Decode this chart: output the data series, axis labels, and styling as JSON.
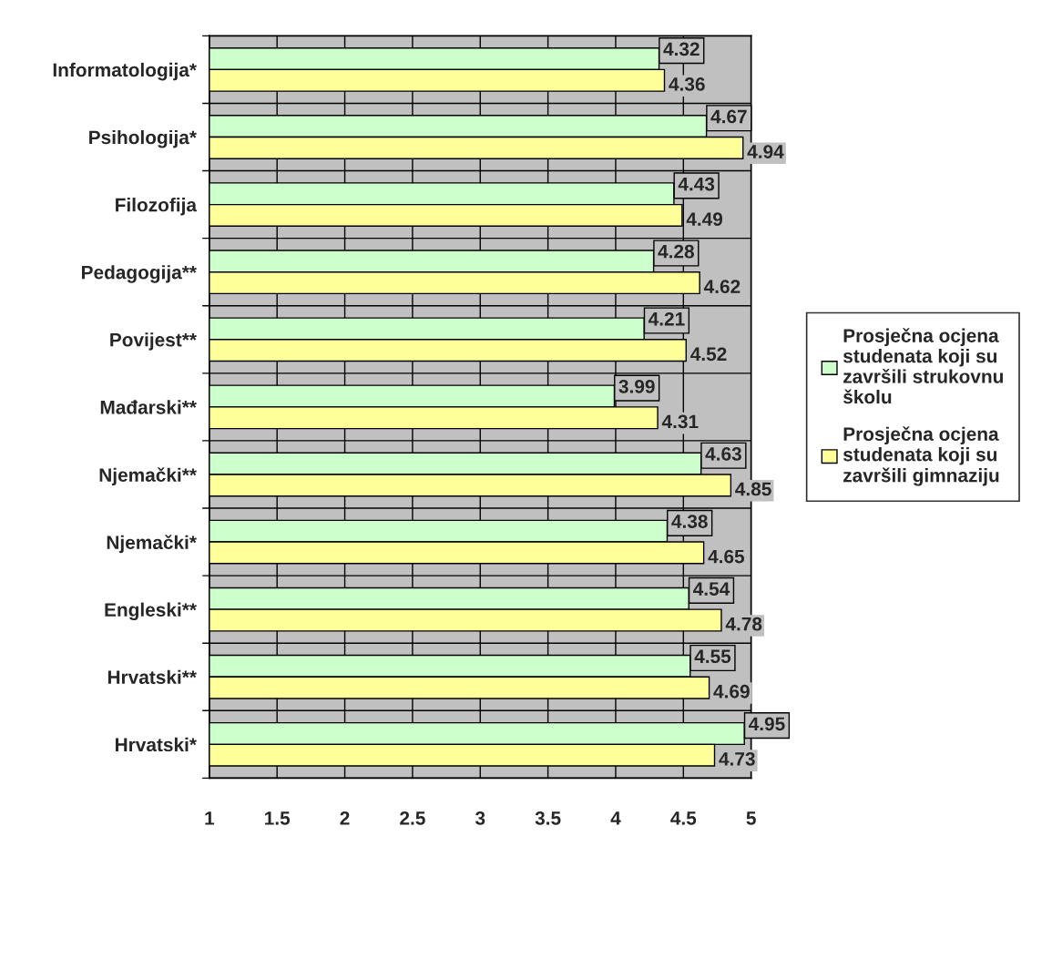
{
  "chart_data": {
    "type": "bar",
    "orientation": "horizontal",
    "categories": [
      "Informatologija*",
      "Psihologija*",
      "Filozofija",
      "Pedagogija**",
      "Povijest**",
      "Mađarski**",
      "Njemački**",
      "Njemački*",
      "Engleski**",
      "Hrvatski**",
      "Hrvatski*"
    ],
    "series": [
      {
        "name": "Prosječna ocjena studenata koji su završili strukovnu školu",
        "color": "#ccffcc",
        "values": [
          4.32,
          4.67,
          4.43,
          4.28,
          4.21,
          3.99,
          4.63,
          4.38,
          4.54,
          4.55,
          4.95
        ]
      },
      {
        "name": "Prosječna ocjena studenata koji su završili gimnaziju",
        "color": "#ffff99",
        "values": [
          4.36,
          4.94,
          4.49,
          4.62,
          4.52,
          4.31,
          4.85,
          4.65,
          4.78,
          4.69,
          4.73
        ]
      }
    ],
    "xlim": [
      1,
      5
    ],
    "xticks": [
      1,
      1.5,
      2,
      2.5,
      3,
      3.5,
      4,
      4.5,
      5
    ],
    "grid": true,
    "legend": "right",
    "data_labels": true
  }
}
